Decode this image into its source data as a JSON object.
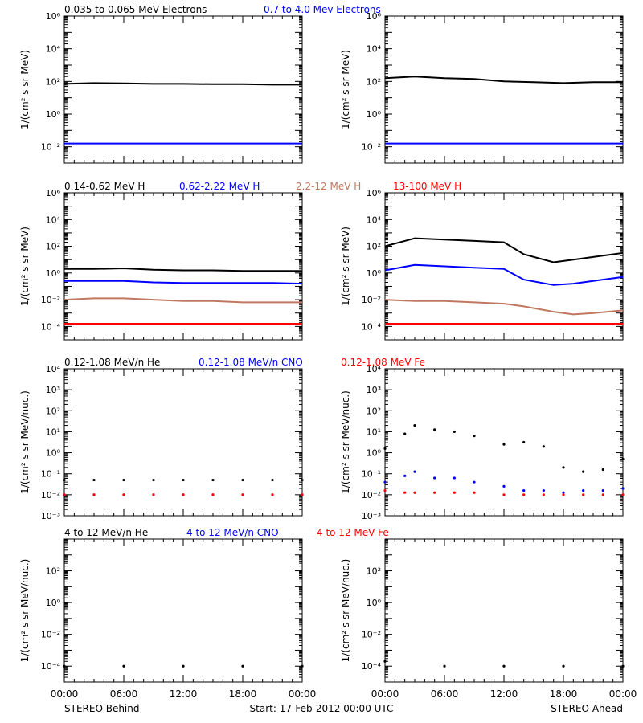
{
  "footer": {
    "left": "STEREO Behind",
    "center": "Start: 17-Feb-2012 00:00 UTC",
    "right": "STEREO Ahead",
    "time_ticks": [
      "00:00",
      "06:00",
      "12:00",
      "18:00",
      "00:00"
    ]
  },
  "colors": {
    "black": "#000000",
    "blue": "#0000ff",
    "tan": "#c07860",
    "red": "#ff0000"
  },
  "rows": [
    {
      "ylabel": "1/(cm² s sr MeV)",
      "ylog": [
        -3,
        6
      ],
      "ticks": [
        -2,
        0,
        2,
        4,
        6
      ],
      "series_labels": [
        {
          "text": "0.035 to 0.065 MeV Electrons",
          "color": "black"
        },
        {
          "text": "0.7 to 4.0 Mev Electrons",
          "color": "blue"
        }
      ]
    },
    {
      "ylabel": "1/(cm² s sr MeV)",
      "ylog": [
        -5,
        6
      ],
      "ticks": [
        -4,
        -2,
        0,
        2,
        4,
        6
      ],
      "series_labels": [
        {
          "text": "0.14-0.62 MeV H",
          "color": "black"
        },
        {
          "text": "0.62-2.22 MeV H",
          "color": "blue"
        },
        {
          "text": "2.2-12 MeV H",
          "color": "tan"
        },
        {
          "text": "13-100 MeV H",
          "color": "red"
        }
      ]
    },
    {
      "ylabel": "1/(cm² s sr MeV/nuc.)",
      "ylog": [
        -3,
        4
      ],
      "ticks": [
        -3,
        -2,
        -1,
        0,
        1,
        2,
        3,
        4
      ],
      "series_labels": [
        {
          "text": "0.12-1.08 MeV/n He",
          "color": "black"
        },
        {
          "text": "0.12-1.08 MeV/n CNO",
          "color": "blue"
        },
        {
          "text": "0.12-1.08 MeV Fe",
          "color": "red"
        }
      ]
    },
    {
      "ylabel": "1/(cm² s sr MeV/nuc.)",
      "ylog": [
        -5,
        4
      ],
      "ticks": [
        -4,
        -2,
        0,
        2
      ],
      "series_labels": [
        {
          "text": "4 to 12 MeV/n He",
          "color": "black"
        },
        {
          "text": "4 to 12 MeV/n CNO",
          "color": "blue"
        },
        {
          "text": "4 to 12 MeV Fe",
          "color": "red"
        }
      ]
    }
  ],
  "chart_data": [
    {
      "type": "line",
      "ylog": true,
      "xlabel": "",
      "x": [
        0,
        3,
        6,
        9,
        12,
        15,
        18,
        21,
        24
      ],
      "series": [
        {
          "name": "0.035 to 0.065 MeV Electrons",
          "color": "black",
          "log10_values": [
            1.85,
            1.9,
            1.88,
            1.85,
            1.85,
            1.83,
            1.83,
            1.8,
            1.8
          ]
        },
        {
          "name": "0.7 to 4.0 Mev Electrons",
          "color": "blue",
          "log10_values": [
            -1.8,
            -1.8,
            -1.8,
            -1.8,
            -1.8,
            -1.8,
            -1.8,
            -1.8,
            -1.8
          ]
        }
      ]
    },
    {
      "type": "line",
      "ylog": true,
      "xlabel": "",
      "x": [
        0,
        3,
        6,
        9,
        12,
        15,
        18,
        21,
        24
      ],
      "series": [
        {
          "name": "0.035 to 0.065 MeV Electrons",
          "color": "black",
          "log10_values": [
            2.2,
            2.3,
            2.2,
            2.15,
            2.0,
            1.95,
            1.9,
            1.95,
            1.95
          ]
        },
        {
          "name": "0.7 to 4.0 Mev Electrons",
          "color": "blue",
          "log10_values": [
            -1.8,
            -1.8,
            -1.8,
            -1.8,
            -1.8,
            -1.8,
            -1.8,
            -1.8,
            -1.8
          ]
        }
      ]
    },
    {
      "type": "line",
      "ylog": true,
      "xlabel": "",
      "x": [
        0,
        3,
        6,
        9,
        12,
        15,
        18,
        21,
        24
      ],
      "series": [
        {
          "name": "0.14-0.62 MeV H",
          "color": "black",
          "log10_values": [
            0.3,
            0.3,
            0.35,
            0.25,
            0.2,
            0.2,
            0.15,
            0.15,
            0.15
          ]
        },
        {
          "name": "0.62-2.22 MeV H",
          "color": "blue",
          "log10_values": [
            -0.6,
            -0.6,
            -0.6,
            -0.7,
            -0.75,
            -0.75,
            -0.75,
            -0.75,
            -0.8
          ]
        },
        {
          "name": "2.2-12 MeV H",
          "color": "tan",
          "log10_values": [
            -2.0,
            -1.9,
            -1.9,
            -2.0,
            -2.1,
            -2.1,
            -2.2,
            -2.2,
            -2.2
          ]
        },
        {
          "name": "13-100 MeV H",
          "color": "red",
          "log10_values": [
            -3.8,
            -3.8,
            -3.8,
            -3.8,
            -3.8,
            -3.8,
            -3.8,
            -3.8,
            -3.8
          ]
        }
      ]
    },
    {
      "type": "line",
      "ylog": true,
      "xlabel": "",
      "x": [
        0,
        3,
        6,
        9,
        12,
        14,
        17,
        19,
        21,
        24
      ],
      "series": [
        {
          "name": "0.14-0.62 MeV H",
          "color": "black",
          "log10_values": [
            2.0,
            2.6,
            2.5,
            2.4,
            2.3,
            1.4,
            0.8,
            1.0,
            1.2,
            1.5
          ]
        },
        {
          "name": "0.62-2.22 MeV H",
          "color": "blue",
          "log10_values": [
            0.2,
            0.6,
            0.5,
            0.4,
            0.3,
            -0.5,
            -0.9,
            -0.8,
            -0.6,
            -0.3
          ]
        },
        {
          "name": "2.2-12 MeV H",
          "color": "tan",
          "log10_values": [
            -2.0,
            -2.1,
            -2.1,
            -2.2,
            -2.3,
            -2.5,
            -2.9,
            -3.1,
            -3.0,
            -2.8
          ]
        },
        {
          "name": "13-100 MeV H",
          "color": "red",
          "log10_values": [
            -3.8,
            -3.8,
            -3.8,
            -3.8,
            -3.8,
            -3.8,
            -3.8,
            -3.8,
            -3.8,
            -3.8
          ]
        }
      ]
    },
    {
      "type": "scatter",
      "ylog": true,
      "xlabel": "",
      "x": [
        0,
        3,
        6,
        9,
        12,
        15,
        18,
        21,
        24
      ],
      "series": [
        {
          "name": "0.12-1.08 MeV/n He",
          "color": "black",
          "log10_values": [
            -1.3,
            -1.3,
            -1.3,
            -1.3,
            -1.3,
            -1.3,
            -1.3,
            -1.3,
            -1.3
          ]
        },
        {
          "name": "0.12-1.08 MeV/n CNO",
          "color": "blue",
          "log10_values": [
            -2.0,
            -2.0,
            -2.0,
            -2.0,
            -2.0,
            -2.0,
            -2.0,
            -2.0,
            -2.0
          ]
        },
        {
          "name": "0.12-1.08 MeV Fe",
          "color": "red",
          "log10_values": [
            -2.0,
            -2.0,
            -2.0,
            -2.0,
            -2.0,
            -2.0,
            -2.0,
            -2.0,
            -2.0
          ]
        }
      ]
    },
    {
      "type": "scatter",
      "ylog": true,
      "xlabel": "",
      "x": [
        0,
        2,
        3,
        5,
        7,
        9,
        12,
        14,
        16,
        18,
        20,
        22,
        24
      ],
      "series": [
        {
          "name": "0.12-1.08 MeV/n He",
          "color": "black",
          "log10_values": [
            0.2,
            0.9,
            1.3,
            1.1,
            1.0,
            0.8,
            0.4,
            0.5,
            0.3,
            -0.7,
            -0.9,
            -0.8,
            -0.3
          ]
        },
        {
          "name": "0.12-1.08 MeV/n CNO",
          "color": "blue",
          "log10_values": [
            -1.4,
            -1.1,
            -0.9,
            -1.2,
            -1.2,
            -1.4,
            -1.6,
            -1.8,
            -1.8,
            -1.9,
            -1.8,
            -1.8,
            -1.7
          ]
        },
        {
          "name": "0.12-1.08 MeV Fe",
          "color": "red",
          "log10_values": [
            -1.8,
            -1.9,
            -1.9,
            -1.9,
            -1.9,
            -1.9,
            -2.0,
            -2.0,
            -2.0,
            -2.0,
            -2.0,
            -2.0,
            -2.0
          ]
        }
      ]
    },
    {
      "type": "scatter",
      "ylog": true,
      "xlabel": "",
      "x": [
        0,
        6,
        12,
        18,
        24
      ],
      "series": [
        {
          "name": "4 to 12 MeV/n He",
          "color": "black",
          "log10_values": [
            -4.0,
            -4.0,
            -4.0,
            -4.0,
            -4.0
          ]
        }
      ]
    },
    {
      "type": "scatter",
      "ylog": true,
      "xlabel": "",
      "x": [
        0,
        6,
        12,
        18,
        24
      ],
      "series": [
        {
          "name": "4 to 12 MeV/n He",
          "color": "black",
          "log10_values": [
            -3.7,
            -4.0,
            -4.0,
            -4.0,
            -4.0
          ]
        }
      ]
    }
  ]
}
